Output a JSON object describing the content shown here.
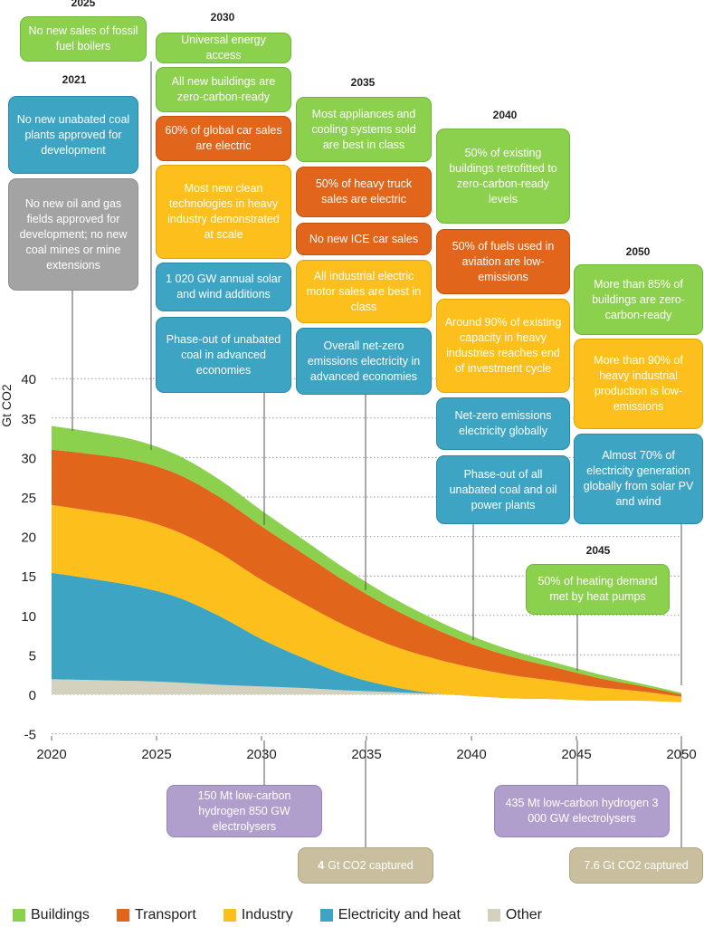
{
  "chart_data": {
    "type": "area",
    "stacked": true,
    "ylabel": "Gt CO2",
    "ylim": [
      -5,
      40
    ],
    "yticks": [
      -5,
      0,
      5,
      10,
      15,
      20,
      25,
      30,
      35,
      40
    ],
    "xlim": [
      2020,
      2050
    ],
    "xticks": [
      2020,
      2025,
      2030,
      2035,
      2040,
      2045,
      2050
    ],
    "x": [
      2020,
      2022,
      2024,
      2026,
      2028,
      2030,
      2032,
      2034,
      2036,
      2038,
      2040,
      2042,
      2044,
      2046,
      2048,
      2050
    ],
    "series": [
      {
        "name": "Other",
        "color": "#d4d1be",
        "values": [
          1.9,
          1.8,
          1.7,
          1.5,
          1.2,
          1.0,
          0.8,
          0.5,
          0.3,
          0.1,
          -0.1,
          -0.3,
          -0.5,
          -0.7,
          -0.8,
          -1.0
        ]
      },
      {
        "name": "Electricity and heat",
        "color": "#3ea4c4",
        "values": [
          13.5,
          12.8,
          12.0,
          10.8,
          8.7,
          6.0,
          3.8,
          2.0,
          0.8,
          0.1,
          -0.1,
          -0.2,
          -0.1,
          -0.1,
          0.0,
          0.0
        ]
      },
      {
        "name": "Industry",
        "color": "#fdbf1b",
        "values": [
          8.6,
          8.6,
          8.6,
          8.3,
          8.0,
          7.5,
          6.9,
          6.2,
          5.3,
          4.5,
          3.6,
          2.9,
          2.3,
          1.7,
          1.2,
          0.7
        ]
      },
      {
        "name": "Transport",
        "color": "#e2651c",
        "values": [
          7.0,
          7.2,
          7.3,
          7.3,
          7.1,
          6.8,
          6.3,
          5.6,
          4.8,
          3.9,
          3.0,
          2.3,
          1.7,
          1.2,
          0.7,
          0.3
        ]
      },
      {
        "name": "Buildings",
        "color": "#8bd14e",
        "values": [
          3.0,
          2.8,
          2.6,
          2.4,
          2.2,
          2.0,
          1.8,
          1.6,
          1.4,
          1.2,
          1.0,
          0.8,
          0.6,
          0.5,
          0.3,
          0.2
        ]
      }
    ],
    "legend_position": "bottom",
    "grid": "dotted horizontal"
  },
  "year_labels": {
    "y2025": "2025",
    "y2030": "2030",
    "y2021": "2021",
    "y2035": "2035",
    "y2040": "2040",
    "y2050": "2050",
    "y2045": "2045"
  },
  "milestones": {
    "y2025_boilers": "No new sales of fossil fuel boilers",
    "y2030_access": "Universal energy access",
    "y2030_buildings": "All new buildings are zero-carbon-ready",
    "y2030_car": "60% of global car sales are electric",
    "y2030_industry": "Most new clean technologies in heavy industry demonstrated at scale",
    "y2030_solar": "1 020 GW annual solar and wind additions",
    "y2030_coal": "Phase-out of unabated coal in advanced economies",
    "y2021_coal": "No new unabated coal plants approved for development",
    "y2021_oil": "No new oil and gas fields approved for development; no new coal mines or mine extensions",
    "y2035_appliances": "Most appliances and cooling systems sold are best in class",
    "y2035_truck": "50% of heavy truck sales are electric",
    "y2035_ice": "No new ICE car sales",
    "y2035_motor": "All industrial electric motor sales are best in class",
    "y2035_electricity": "Overall net-zero emissions electricity in advanced economies",
    "y2040_buildings": "50% of existing buildings retrofitted to zero-carbon-ready levels",
    "y2040_aviation": "50% of fuels used in aviation are low-emissions",
    "y2040_industry": "Around 90% of existing capacity in heavy industries reaches end of investment cycle",
    "y2040_netzero": "Net-zero emissions electricity globally",
    "y2040_phaseout": "Phase-out of all unabated coal and oil power plants",
    "y2050_buildings": "More than 85% of buildings are zero-carbon-ready",
    "y2050_industry": "More than 90% of heavy industrial production is low-emissions",
    "y2050_solar": "Almost 70% of electricity generation globally from solar PV and wind",
    "y2045_heat": "50% of heating demand met by heat pumps"
  },
  "bottom_boxes": {
    "h2030": "150 Mt low-carbon hydrogen 850 GW electrolysers",
    "c2035_bold": "4",
    "c2035": "Gt CO2 captured",
    "h2050": "435 Mt low-carbon hydrogen 3 000 GW electrolysers",
    "c2050": "7.6 Gt CO2 captured"
  },
  "legend": [
    {
      "label": "Buildings",
      "color": "#8bd14e"
    },
    {
      "label": "Transport",
      "color": "#e2651c"
    },
    {
      "label": "Industry",
      "color": "#fdbf1b"
    },
    {
      "label": "Electricity and heat",
      "color": "#3ea4c4"
    },
    {
      "label": "Other",
      "color": "#d4d1be"
    }
  ]
}
